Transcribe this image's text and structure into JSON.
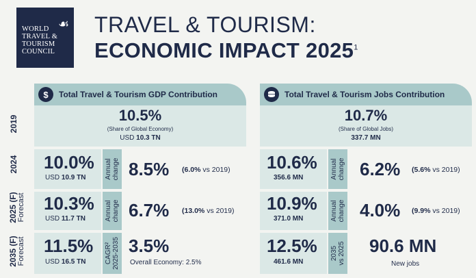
{
  "logo": {
    "line1": "WORLD",
    "line2": "TRAVEL &",
    "line3": "TOURISM",
    "line4": "COUNCIL"
  },
  "title": {
    "line1": "TRAVEL & TOURISM:",
    "line2": "ECONOMIC IMPACT 2025",
    "sup": "1"
  },
  "gdp_header": {
    "icon": "$",
    "label": "Total Travel & Tourism GDP Contribution"
  },
  "jobs_header": {
    "label": "Total Travel & Tourism Jobs Contribution"
  },
  "rows": {
    "r2019": {
      "year": "2019"
    },
    "r2024": {
      "year": "2024"
    },
    "r2025": {
      "year": "2025 (F)",
      "sub": "Forecast"
    },
    "r2035": {
      "year": "2035 (F)",
      "sub": "Forecast"
    }
  },
  "gdp": {
    "y2019": {
      "pct": "10.5%",
      "note": "(Share of Global Economy)",
      "usd_prefix": "USD ",
      "usd": "10.3 TN"
    },
    "y2024": {
      "pct": "10.0%",
      "usd_prefix": "USD ",
      "usd": "10.9 TN",
      "ann": "Annual\nchange",
      "chg": "8.5%",
      "cmp_val": "(6.0%",
      "cmp_rest": " vs 2019)"
    },
    "y2025": {
      "pct": "10.3%",
      "usd_prefix": "USD ",
      "usd": "11.7 TN",
      "ann": "Annual\nchange",
      "chg": "6.7%",
      "cmp_val": "(13.0%",
      "cmp_rest": " vs 2019)"
    },
    "y2035": {
      "pct": "11.5%",
      "usd_prefix": "USD ",
      "usd": "16.5 TN",
      "ann": "CAGR²\n2025-2035",
      "chg": "3.5%",
      "overall": "Overall Economy: 2.5%"
    }
  },
  "jobs": {
    "y2019": {
      "pct": "10.7%",
      "note": "(Share of Global Jobs)",
      "val": "337.7 MN"
    },
    "y2024": {
      "pct": "10.6%",
      "val": "356.6 MN",
      "ann": "Annual\nchange",
      "chg": "6.2%",
      "cmp_val": "(5.6%",
      "cmp_rest": " vs 2019)"
    },
    "y2025": {
      "pct": "10.9%",
      "val": "371.0 MN",
      "ann": "Annual\nchange",
      "chg": "4.0%",
      "cmp_val": "(9.9%",
      "cmp_rest": " vs 2019)"
    },
    "y2035": {
      "pct": "12.5%",
      "val": "461.6 MN",
      "ann": "2035\nvs 2025",
      "chg": "90.6 MN",
      "newjobs": "New jobs"
    }
  },
  "colors": {
    "navy": "#1f2a48",
    "teal_dark": "#a9c9c9",
    "teal_light": "#dbe8e6",
    "bg": "#f3f4f1"
  }
}
